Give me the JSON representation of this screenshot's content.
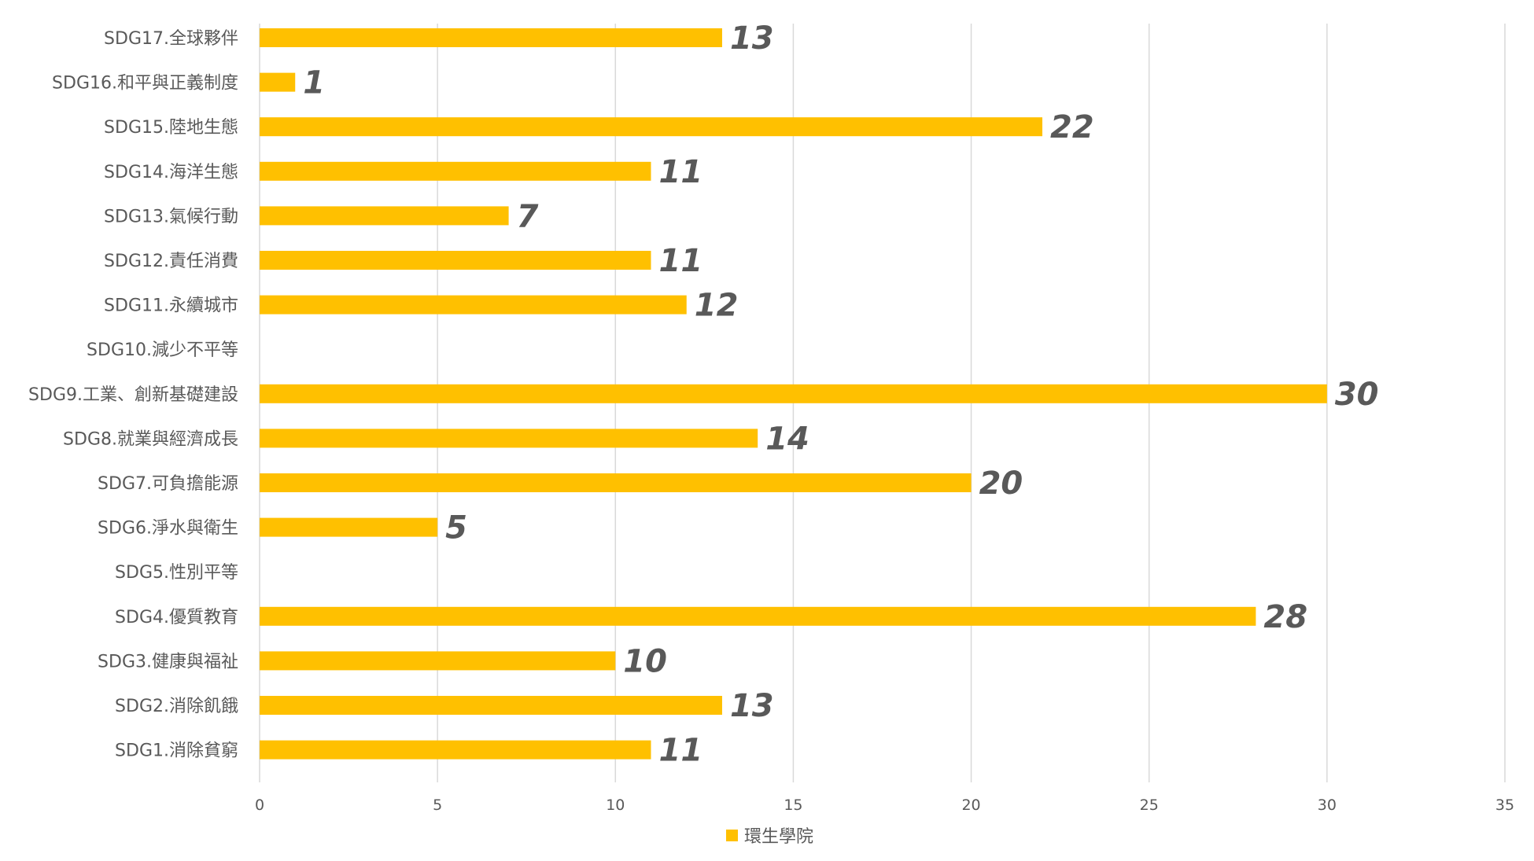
{
  "chart_data": {
    "type": "bar",
    "orientation": "horizontal",
    "categories": [
      "SDG17.全球夥伴",
      "SDG16.和平與正義制度",
      "SDG15.陸地生態",
      "SDG14.海洋生態",
      "SDG13.氣候行動",
      "SDG12.責任消費",
      "SDG11.永續城市",
      "SDG10.減少不平等",
      "SDG9.工業、創新基礎建設",
      "SDG8.就業與經濟成長",
      "SDG7.可負擔能源",
      "SDG6.淨水與衛生",
      "SDG5.性別平等",
      "SDG4.優質教育",
      "SDG3.健康與福祉",
      "SDG2.消除飢餓",
      "SDG1.消除貧窮"
    ],
    "series": [
      {
        "name": "環生學院",
        "color": "#FFC000",
        "values": [
          13,
          1,
          22,
          11,
          7,
          11,
          12,
          null,
          30,
          14,
          20,
          5,
          null,
          28,
          10,
          13,
          11
        ]
      }
    ],
    "xlim": [
      0,
      35
    ],
    "xticks": [
      0,
      5,
      10,
      15,
      20,
      25,
      30,
      35
    ],
    "grid": "vertical",
    "legend_position": "bottom",
    "title": "",
    "xlabel": "",
    "ylabel": ""
  },
  "colors": {
    "bar": "#FFC000",
    "grid": "#D9D9D9",
    "text": "#595959"
  }
}
